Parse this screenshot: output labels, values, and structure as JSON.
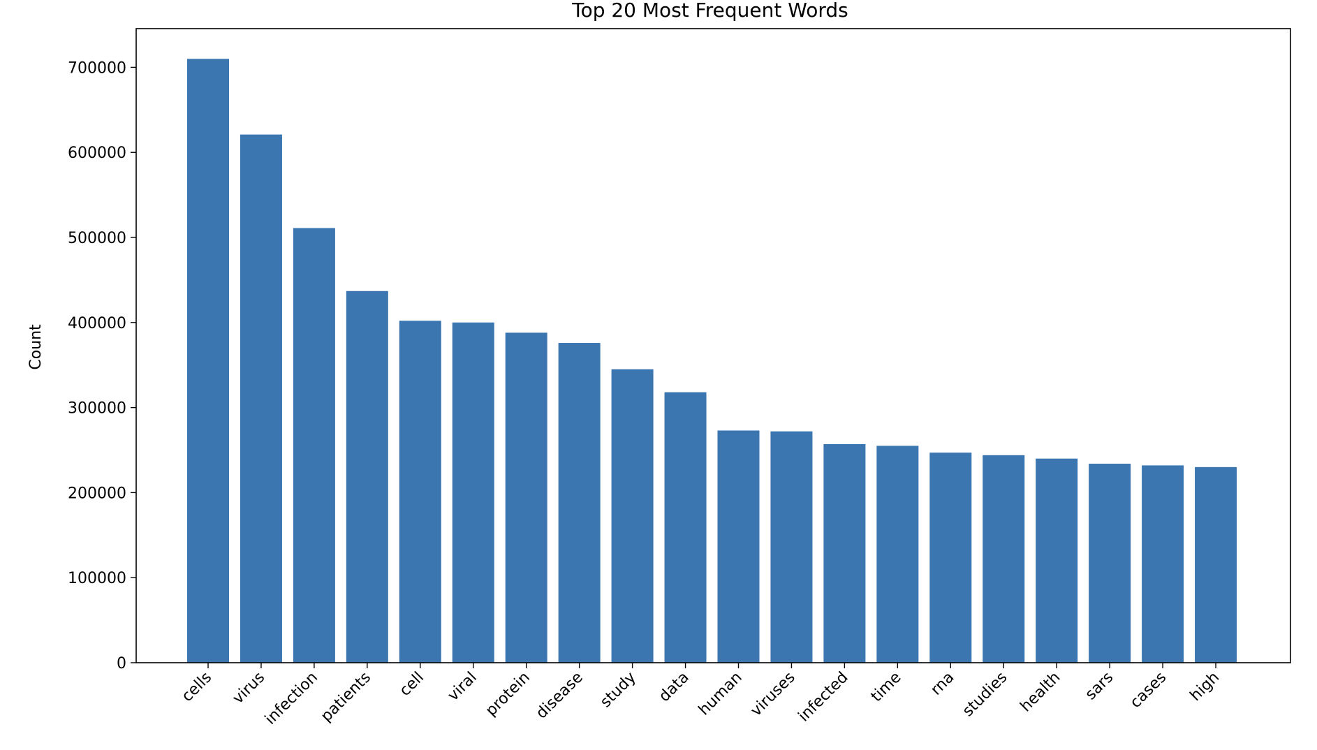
{
  "chart_data": {
    "type": "bar",
    "title": "Top 20 Most Frequent Words",
    "xlabel": "",
    "ylabel": "Count",
    "categories": [
      "cells",
      "virus",
      "infection",
      "patients",
      "cell",
      "viral",
      "protein",
      "disease",
      "study",
      "data",
      "human",
      "viruses",
      "infected",
      "time",
      "rna",
      "studies",
      "health",
      "sars",
      "cases",
      "high"
    ],
    "values": [
      710000,
      621000,
      511000,
      437000,
      402000,
      400000,
      388000,
      376000,
      345000,
      318000,
      273000,
      272000,
      257000,
      255000,
      247000,
      244000,
      240000,
      234000,
      232000,
      230000
    ],
    "yticks": [
      0,
      100000,
      200000,
      300000,
      400000,
      500000,
      600000,
      700000
    ],
    "ytick_labels": [
      "0",
      "100000",
      "200000",
      "300000",
      "400000",
      "500000",
      "600000",
      "700000"
    ],
    "ylim": [
      0,
      745500
    ],
    "grid": false,
    "legend": "none",
    "bar_color": "#3b76b0"
  }
}
